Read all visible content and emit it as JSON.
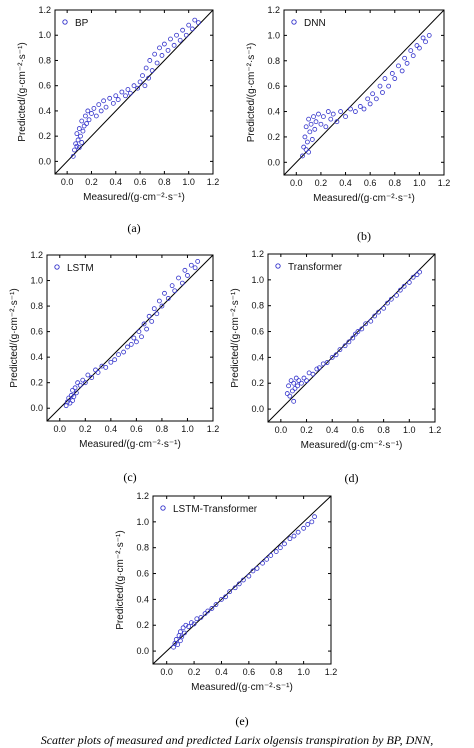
{
  "figure": {
    "caption": "Scatter plots of measured and predicted Larix olgensis transpiration by BP, DNN,",
    "marker_color": "#3333cc",
    "line_color": "#000000"
  },
  "chart_data": [
    {
      "type": "scatter",
      "panel_label": "(a)",
      "legend": "BP",
      "xlabel": "Measured/(g·cm⁻²·s⁻¹)",
      "ylabel": "Predicted/(g·cm⁻²·s⁻¹)",
      "xlim": [
        -0.1,
        1.2
      ],
      "ylim": [
        -0.1,
        1.2
      ],
      "xticks": [
        0.0,
        0.2,
        0.4,
        0.6,
        0.8,
        1.0,
        1.2
      ],
      "yticks": [
        0.0,
        0.2,
        0.4,
        0.6,
        0.8,
        1.0,
        1.2
      ],
      "reference_line": "y = x",
      "points": [
        [
          0.05,
          0.04
        ],
        [
          0.06,
          0.09
        ],
        [
          0.07,
          0.14
        ],
        [
          0.08,
          0.12
        ],
        [
          0.08,
          0.22
        ],
        [
          0.09,
          0.17
        ],
        [
          0.1,
          0.11
        ],
        [
          0.1,
          0.26
        ],
        [
          0.11,
          0.2
        ],
        [
          0.12,
          0.15
        ],
        [
          0.12,
          0.32
        ],
        [
          0.13,
          0.24
        ],
        [
          0.14,
          0.28
        ],
        [
          0.15,
          0.36
        ],
        [
          0.16,
          0.3
        ],
        [
          0.17,
          0.4
        ],
        [
          0.18,
          0.33
        ],
        [
          0.2,
          0.38
        ],
        [
          0.22,
          0.42
        ],
        [
          0.24,
          0.36
        ],
        [
          0.26,
          0.45
        ],
        [
          0.28,
          0.4
        ],
        [
          0.3,
          0.48
        ],
        [
          0.32,
          0.43
        ],
        [
          0.35,
          0.5
        ],
        [
          0.38,
          0.46
        ],
        [
          0.4,
          0.52
        ],
        [
          0.42,
          0.49
        ],
        [
          0.45,
          0.55
        ],
        [
          0.48,
          0.52
        ],
        [
          0.5,
          0.57
        ],
        [
          0.52,
          0.54
        ],
        [
          0.55,
          0.6
        ],
        [
          0.58,
          0.58
        ],
        [
          0.6,
          0.63
        ],
        [
          0.62,
          0.68
        ],
        [
          0.64,
          0.6
        ],
        [
          0.65,
          0.74
        ],
        [
          0.67,
          0.66
        ],
        [
          0.68,
          0.8
        ],
        [
          0.7,
          0.72
        ],
        [
          0.72,
          0.85
        ],
        [
          0.74,
          0.78
        ],
        [
          0.76,
          0.9
        ],
        [
          0.78,
          0.84
        ],
        [
          0.8,
          0.93
        ],
        [
          0.83,
          0.88
        ],
        [
          0.85,
          0.97
        ],
        [
          0.88,
          0.92
        ],
        [
          0.9,
          1.0
        ],
        [
          0.93,
          0.96
        ],
        [
          0.95,
          1.04
        ],
        [
          0.98,
          1.0
        ],
        [
          1.0,
          1.08
        ],
        [
          1.03,
          1.05
        ],
        [
          1.05,
          1.12
        ],
        [
          1.08,
          1.1
        ]
      ]
    },
    {
      "type": "scatter",
      "panel_label": "(b)",
      "legend": "DNN",
      "xlabel": "Measured/(g·cm⁻²·s⁻¹)",
      "ylabel": "Predicted/(g·cm⁻²·s⁻¹)",
      "xlim": [
        -0.1,
        1.2
      ],
      "ylim": [
        -0.1,
        1.2
      ],
      "xticks": [
        0.0,
        0.2,
        0.4,
        0.6,
        0.8,
        1.0,
        1.2
      ],
      "yticks": [
        0.0,
        0.2,
        0.4,
        0.6,
        0.8,
        1.0,
        1.2
      ],
      "reference_line": "y = x",
      "points": [
        [
          0.05,
          0.05
        ],
        [
          0.06,
          0.12
        ],
        [
          0.07,
          0.2
        ],
        [
          0.08,
          0.1
        ],
        [
          0.08,
          0.28
        ],
        [
          0.09,
          0.16
        ],
        [
          0.1,
          0.34
        ],
        [
          0.1,
          0.08
        ],
        [
          0.11,
          0.24
        ],
        [
          0.12,
          0.3
        ],
        [
          0.13,
          0.18
        ],
        [
          0.14,
          0.36
        ],
        [
          0.15,
          0.26
        ],
        [
          0.16,
          0.32
        ],
        [
          0.18,
          0.38
        ],
        [
          0.2,
          0.3
        ],
        [
          0.22,
          0.36
        ],
        [
          0.24,
          0.28
        ],
        [
          0.26,
          0.4
        ],
        [
          0.28,
          0.34
        ],
        [
          0.3,
          0.38
        ],
        [
          0.33,
          0.32
        ],
        [
          0.36,
          0.4
        ],
        [
          0.4,
          0.36
        ],
        [
          0.44,
          0.42
        ],
        [
          0.48,
          0.4
        ],
        [
          0.52,
          0.44
        ],
        [
          0.55,
          0.42
        ],
        [
          0.58,
          0.5
        ],
        [
          0.6,
          0.46
        ],
        [
          0.62,
          0.54
        ],
        [
          0.65,
          0.5
        ],
        [
          0.68,
          0.6
        ],
        [
          0.7,
          0.55
        ],
        [
          0.72,
          0.66
        ],
        [
          0.75,
          0.6
        ],
        [
          0.78,
          0.7
        ],
        [
          0.8,
          0.66
        ],
        [
          0.83,
          0.76
        ],
        [
          0.86,
          0.72
        ],
        [
          0.88,
          0.82
        ],
        [
          0.9,
          0.78
        ],
        [
          0.93,
          0.88
        ],
        [
          0.95,
          0.84
        ],
        [
          0.98,
          0.92
        ],
        [
          1.0,
          0.9
        ],
        [
          1.03,
          0.98
        ],
        [
          1.05,
          0.95
        ],
        [
          1.08,
          1.0
        ]
      ]
    },
    {
      "type": "scatter",
      "panel_label": "(c)",
      "legend": "LSTM",
      "xlabel": "Measured/(g·cm⁻²·s⁻¹)",
      "ylabel": "Predicted/(g·cm⁻²·s⁻¹)",
      "xlim": [
        -0.1,
        1.2
      ],
      "ylim": [
        -0.1,
        1.2
      ],
      "xticks": [
        0.0,
        0.2,
        0.4,
        0.6,
        0.8,
        1.0,
        1.2
      ],
      "yticks": [
        0.0,
        0.2,
        0.4,
        0.6,
        0.8,
        1.0,
        1.2
      ],
      "reference_line": "y = x",
      "points": [
        [
          0.05,
          0.02
        ],
        [
          0.06,
          0.05
        ],
        [
          0.07,
          0.08
        ],
        [
          0.08,
          0.04
        ],
        [
          0.09,
          0.1
        ],
        [
          0.1,
          0.06
        ],
        [
          0.1,
          0.14
        ],
        [
          0.11,
          0.09
        ],
        [
          0.12,
          0.16
        ],
        [
          0.13,
          0.12
        ],
        [
          0.14,
          0.2
        ],
        [
          0.16,
          0.18
        ],
        [
          0.18,
          0.22
        ],
        [
          0.2,
          0.2
        ],
        [
          0.22,
          0.26
        ],
        [
          0.25,
          0.24
        ],
        [
          0.28,
          0.3
        ],
        [
          0.3,
          0.28
        ],
        [
          0.33,
          0.33
        ],
        [
          0.36,
          0.32
        ],
        [
          0.4,
          0.36
        ],
        [
          0.43,
          0.38
        ],
        [
          0.46,
          0.42
        ],
        [
          0.5,
          0.44
        ],
        [
          0.53,
          0.48
        ],
        [
          0.56,
          0.5
        ],
        [
          0.58,
          0.55
        ],
        [
          0.6,
          0.52
        ],
        [
          0.62,
          0.6
        ],
        [
          0.64,
          0.56
        ],
        [
          0.66,
          0.66
        ],
        [
          0.68,
          0.62
        ],
        [
          0.7,
          0.72
        ],
        [
          0.72,
          0.68
        ],
        [
          0.74,
          0.78
        ],
        [
          0.76,
          0.74
        ],
        [
          0.78,
          0.84
        ],
        [
          0.8,
          0.8
        ],
        [
          0.82,
          0.9
        ],
        [
          0.85,
          0.86
        ],
        [
          0.88,
          0.96
        ],
        [
          0.9,
          0.92
        ],
        [
          0.93,
          1.02
        ],
        [
          0.96,
          0.98
        ],
        [
          0.98,
          1.08
        ],
        [
          1.0,
          1.04
        ],
        [
          1.03,
          1.12
        ],
        [
          1.06,
          1.1
        ],
        [
          1.08,
          1.15
        ]
      ]
    },
    {
      "type": "scatter",
      "panel_label": "(d)",
      "legend": "Transformer",
      "xlabel": "Measured/(g·cm⁻²·s⁻¹)",
      "ylabel": "Predicted/(g·cm⁻²·s⁻¹)",
      "xlim": [
        -0.1,
        1.2
      ],
      "ylim": [
        -0.1,
        1.2
      ],
      "xticks": [
        0.0,
        0.2,
        0.4,
        0.6,
        0.8,
        1.0,
        1.2
      ],
      "yticks": [
        0.0,
        0.2,
        0.4,
        0.6,
        0.8,
        1.0,
        1.2
      ],
      "reference_line": "y = x",
      "points": [
        [
          0.05,
          0.12
        ],
        [
          0.06,
          0.18
        ],
        [
          0.07,
          0.1
        ],
        [
          0.08,
          0.22
        ],
        [
          0.09,
          0.14
        ],
        [
          0.1,
          0.2
        ],
        [
          0.1,
          0.06
        ],
        [
          0.11,
          0.16
        ],
        [
          0.12,
          0.24
        ],
        [
          0.13,
          0.18
        ],
        [
          0.14,
          0.22
        ],
        [
          0.16,
          0.2
        ],
        [
          0.18,
          0.24
        ],
        [
          0.2,
          0.22
        ],
        [
          0.22,
          0.28
        ],
        [
          0.25,
          0.27
        ],
        [
          0.28,
          0.31
        ],
        [
          0.3,
          0.32
        ],
        [
          0.33,
          0.35
        ],
        [
          0.36,
          0.36
        ],
        [
          0.4,
          0.4
        ],
        [
          0.43,
          0.42
        ],
        [
          0.46,
          0.46
        ],
        [
          0.5,
          0.49
        ],
        [
          0.53,
          0.52
        ],
        [
          0.56,
          0.55
        ],
        [
          0.58,
          0.58
        ],
        [
          0.6,
          0.6
        ],
        [
          0.63,
          0.62
        ],
        [
          0.66,
          0.66
        ],
        [
          0.7,
          0.68
        ],
        [
          0.73,
          0.72
        ],
        [
          0.76,
          0.75
        ],
        [
          0.8,
          0.78
        ],
        [
          0.83,
          0.82
        ],
        [
          0.86,
          0.85
        ],
        [
          0.9,
          0.88
        ],
        [
          0.93,
          0.92
        ],
        [
          0.96,
          0.95
        ],
        [
          1.0,
          0.98
        ],
        [
          1.03,
          1.02
        ],
        [
          1.06,
          1.04
        ],
        [
          1.08,
          1.06
        ]
      ]
    },
    {
      "type": "scatter",
      "panel_label": "(e)",
      "legend": "LSTM-Transformer",
      "xlabel": "Measured/(g·cm⁻²·s⁻¹)",
      "ylabel": "Predicted/(g·cm⁻²·s⁻¹)",
      "xlim": [
        -0.1,
        1.2
      ],
      "ylim": [
        -0.1,
        1.2
      ],
      "xticks": [
        0.0,
        0.2,
        0.4,
        0.6,
        0.8,
        1.0,
        1.2
      ],
      "yticks": [
        0.0,
        0.2,
        0.4,
        0.6,
        0.8,
        1.0,
        1.2
      ],
      "reference_line": "y = x",
      "points": [
        [
          0.05,
          0.03
        ],
        [
          0.06,
          0.06
        ],
        [
          0.07,
          0.09
        ],
        [
          0.08,
          0.05
        ],
        [
          0.09,
          0.12
        ],
        [
          0.1,
          0.08
        ],
        [
          0.1,
          0.15
        ],
        [
          0.11,
          0.11
        ],
        [
          0.12,
          0.18
        ],
        [
          0.13,
          0.14
        ],
        [
          0.14,
          0.2
        ],
        [
          0.16,
          0.19
        ],
        [
          0.18,
          0.22
        ],
        [
          0.2,
          0.21
        ],
        [
          0.22,
          0.25
        ],
        [
          0.25,
          0.26
        ],
        [
          0.28,
          0.29
        ],
        [
          0.3,
          0.31
        ],
        [
          0.33,
          0.33
        ],
        [
          0.36,
          0.36
        ],
        [
          0.4,
          0.4
        ],
        [
          0.43,
          0.42
        ],
        [
          0.46,
          0.46
        ],
        [
          0.5,
          0.49
        ],
        [
          0.53,
          0.52
        ],
        [
          0.56,
          0.55
        ],
        [
          0.6,
          0.58
        ],
        [
          0.63,
          0.62
        ],
        [
          0.66,
          0.64
        ],
        [
          0.7,
          0.68
        ],
        [
          0.73,
          0.71
        ],
        [
          0.76,
          0.74
        ],
        [
          0.8,
          0.77
        ],
        [
          0.83,
          0.8
        ],
        [
          0.86,
          0.83
        ],
        [
          0.9,
          0.87
        ],
        [
          0.93,
          0.89
        ],
        [
          0.96,
          0.92
        ],
        [
          1.0,
          0.95
        ],
        [
          1.03,
          0.98
        ],
        [
          1.06,
          1.0
        ],
        [
          1.08,
          1.04
        ]
      ]
    }
  ]
}
